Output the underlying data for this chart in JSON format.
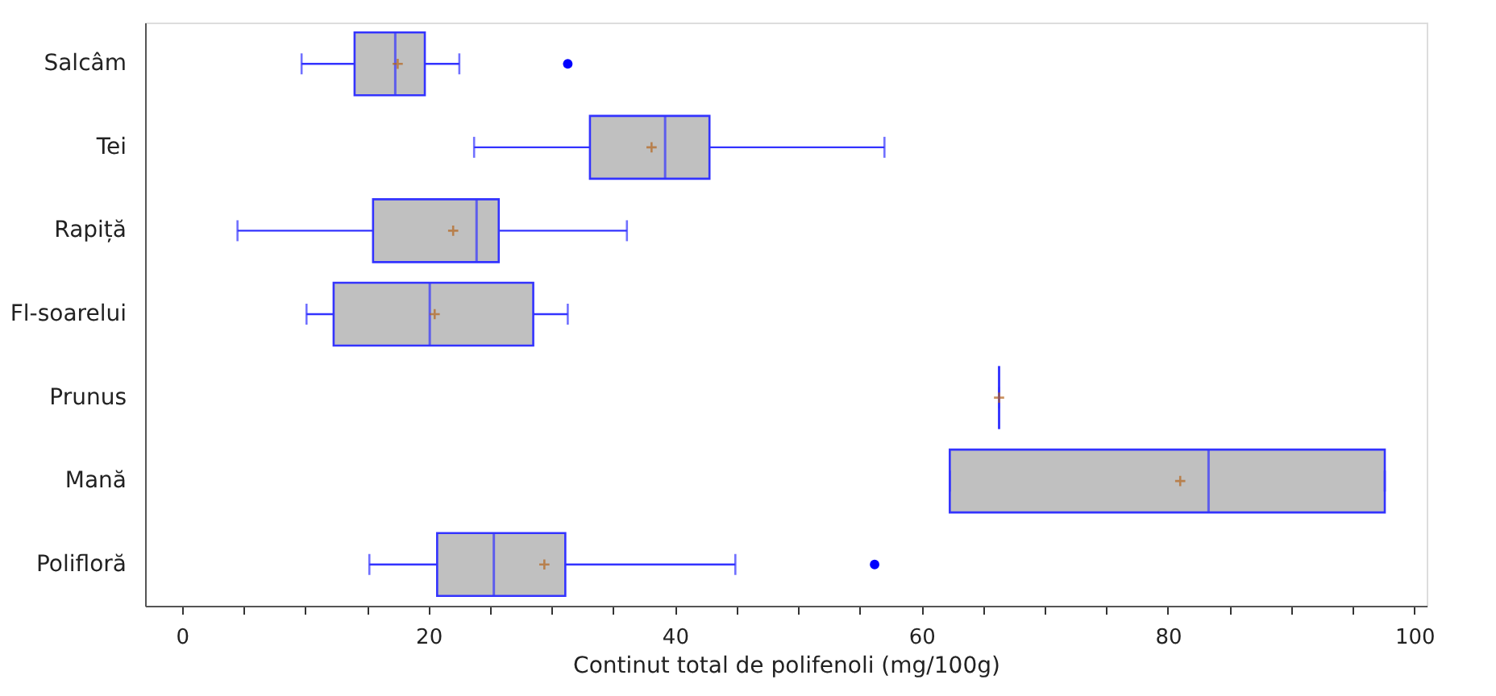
{
  "chart_data": {
    "type": "box",
    "orientation": "horizontal",
    "xlabel": "Continut total de polifenoli (mg/100g)",
    "categories": [
      "Salcâm",
      "Tei",
      "Rapiță",
      "Fl-soarelui",
      "Prunus",
      "Mană",
      "Polifloră"
    ],
    "boxes": [
      {
        "low": 9.7,
        "q1": 14.0,
        "median": 17.3,
        "q3": 19.7,
        "high": 22.5,
        "mean": 17.5,
        "outliers": [
          31.3
        ]
      },
      {
        "low": 23.7,
        "q1": 33.1,
        "median": 39.2,
        "q3": 42.8,
        "high": 57.0,
        "mean": 38.1
      },
      {
        "low": 4.5,
        "q1": 15.5,
        "median": 23.9,
        "q3": 25.7,
        "high": 36.1,
        "mean": 22.0
      },
      {
        "low": 10.1,
        "q1": 12.3,
        "median": 20.1,
        "q3": 28.5,
        "high": 31.3,
        "mean": 20.5
      },
      {
        "low": 66.3,
        "q1": 66.3,
        "median": 66.3,
        "q3": 66.3,
        "high": 66.3,
        "mean": 66.3
      },
      {
        "low": 62.3,
        "q1": 62.3,
        "median": 83.3,
        "q3": 97.6,
        "high": 97.6,
        "mean": 81.0
      },
      {
        "low": 15.2,
        "q1": 20.7,
        "median": 25.3,
        "q3": 31.1,
        "high": 44.9,
        "mean": 29.4,
        "outliers": [
          56.2
        ]
      }
    ],
    "xlim": [
      -3,
      101
    ],
    "xticks": [
      0,
      {
        "value": 5,
        "label": null
      },
      {
        "value": 10,
        "label": null
      },
      {
        "value": 15,
        "label": null
      },
      20,
      {
        "value": 25,
        "label": null
      },
      {
        "value": 30,
        "label": null
      },
      {
        "value": 35,
        "label": null
      },
      40,
      {
        "value": 45,
        "label": null
      },
      {
        "value": 50,
        "label": null
      },
      {
        "value": 55,
        "label": null
      },
      60,
      {
        "value": 65,
        "label": null
      },
      {
        "value": 70,
        "label": null
      },
      {
        "value": 75,
        "label": null
      },
      80,
      {
        "value": 85,
        "label": null
      },
      {
        "value": 90,
        "label": null
      },
      {
        "value": 95,
        "label": null
      },
      100
    ],
    "grid": false
  }
}
